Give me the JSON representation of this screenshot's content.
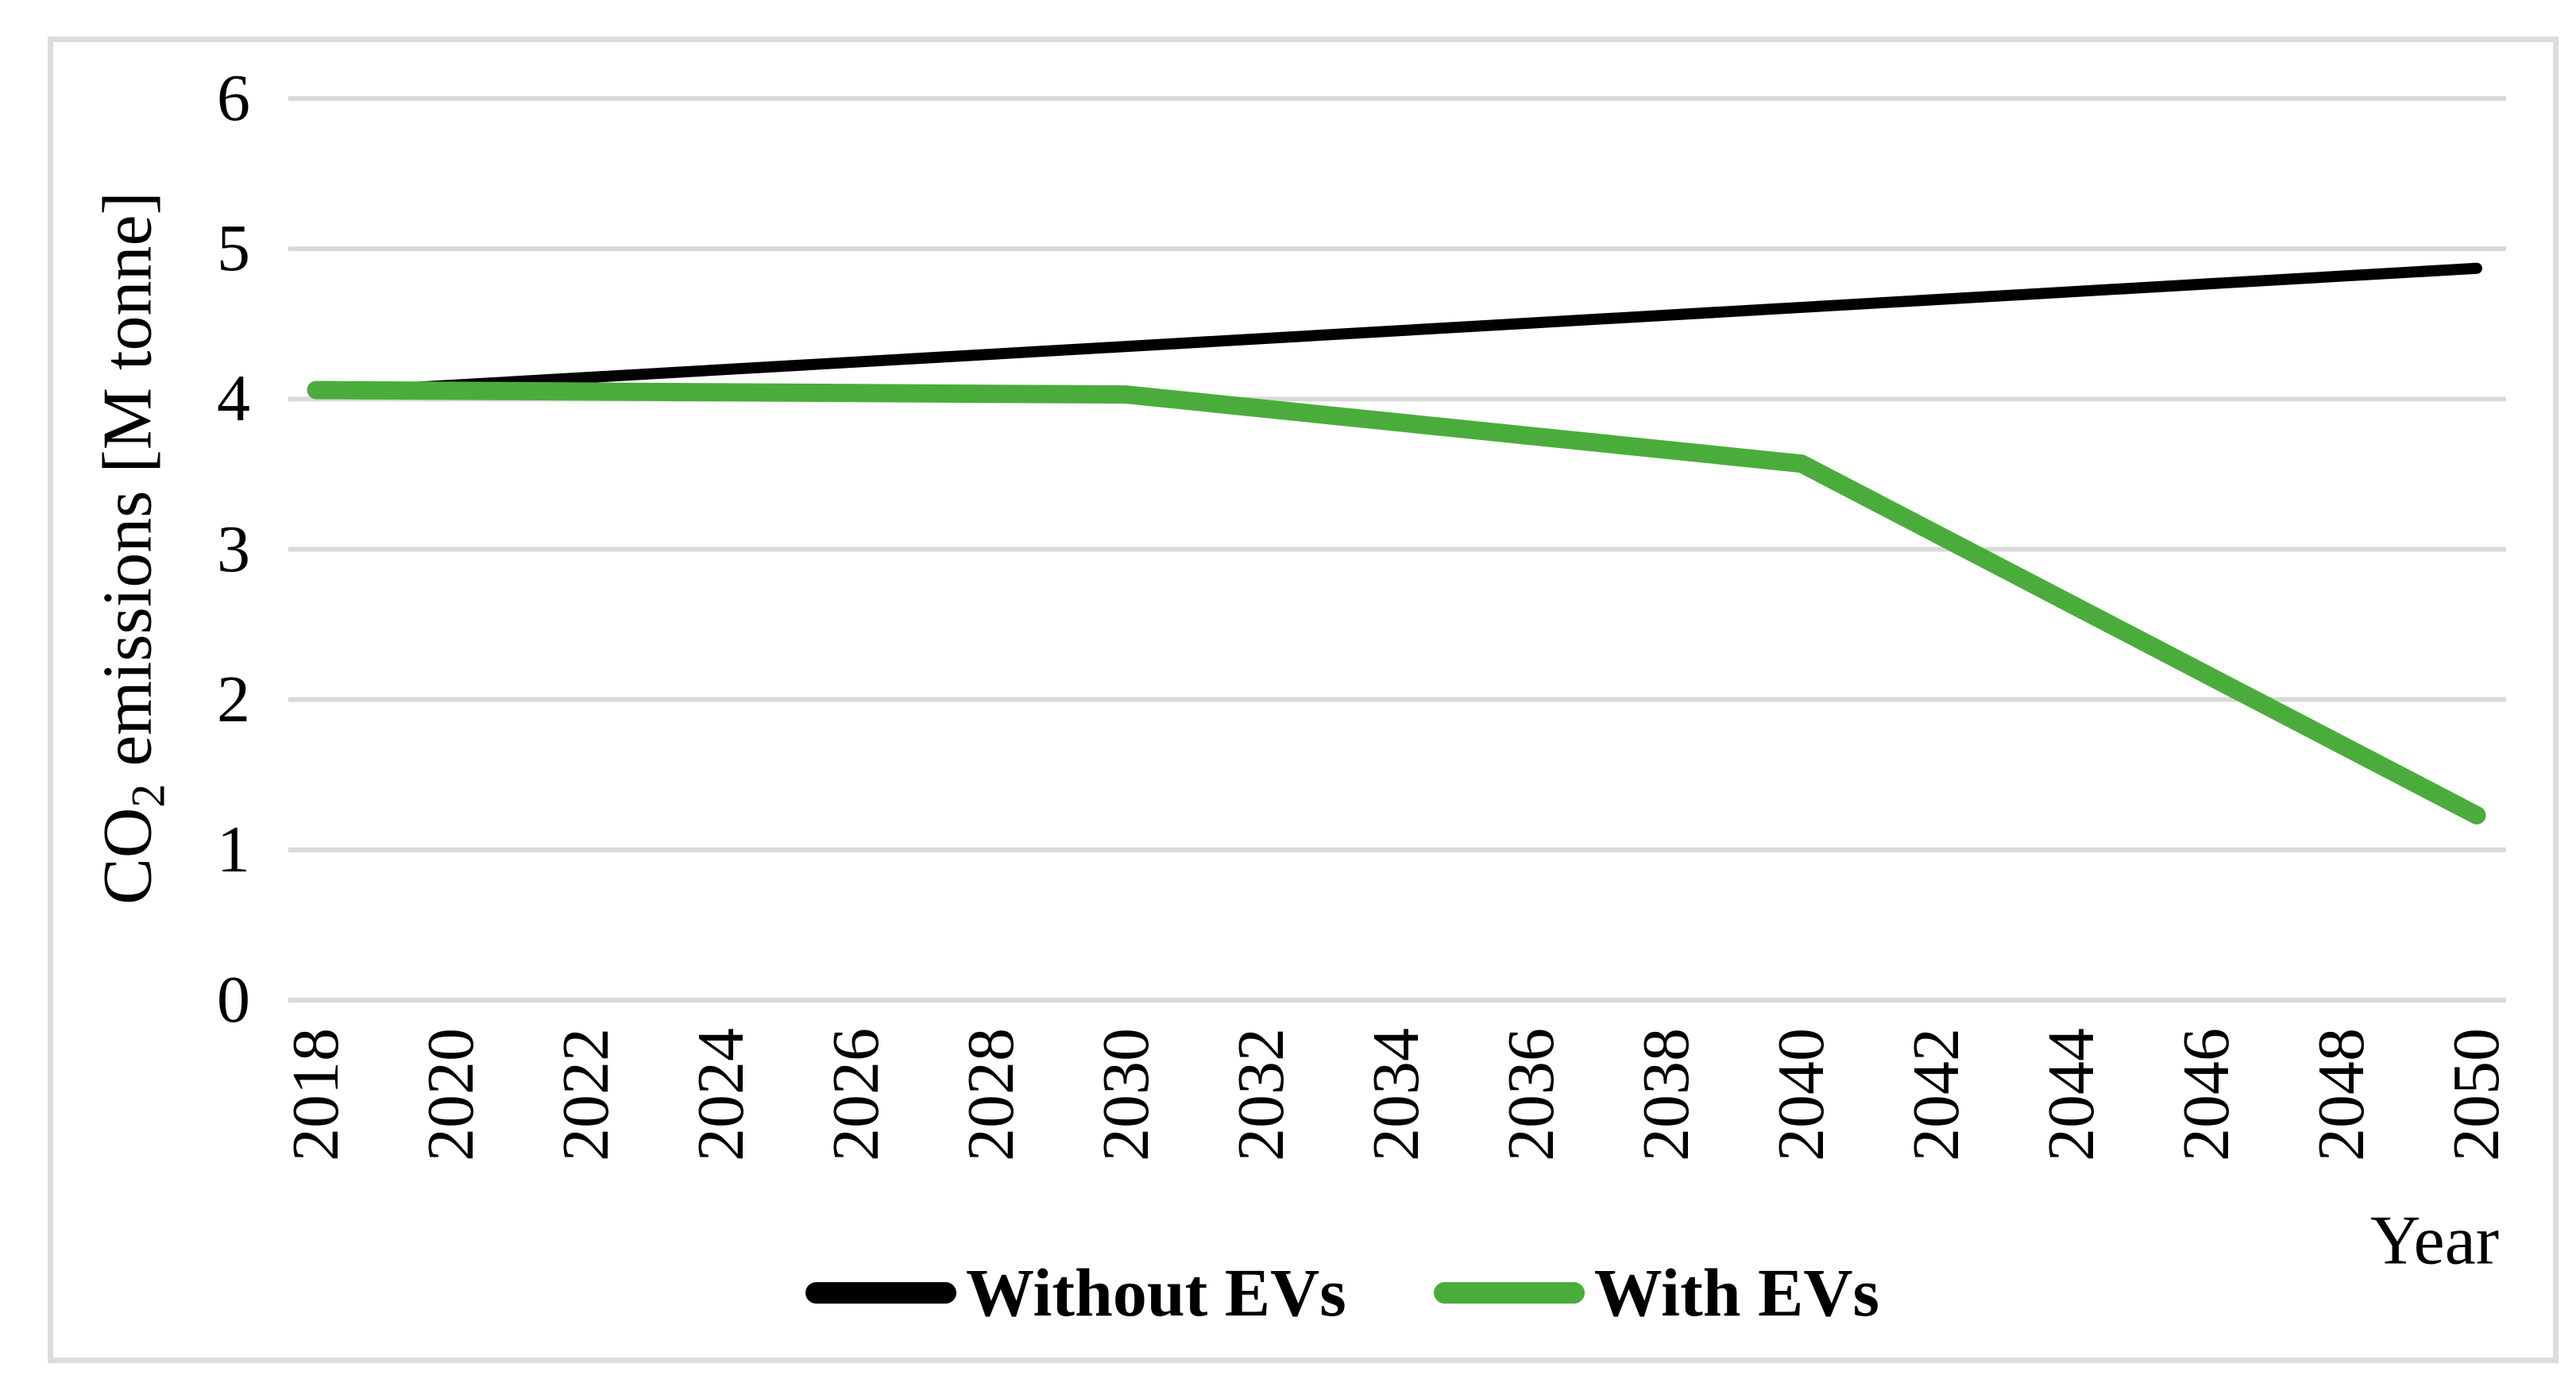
{
  "chart_data": {
    "type": "line",
    "title": "",
    "xlabel": "Year",
    "ylabel": "CO2 emissions [M tonne]",
    "ylabel_parts": {
      "prefix": "CO",
      "subscript": "2",
      "suffix": " emissions [M tonne]"
    },
    "xlim": [
      2018,
      2050
    ],
    "ylim": [
      0,
      6
    ],
    "yticks": [
      0,
      1,
      2,
      3,
      4,
      5,
      6
    ],
    "xticks": [
      2018,
      2020,
      2022,
      2024,
      2026,
      2028,
      2030,
      2032,
      2034,
      2036,
      2038,
      2040,
      2042,
      2044,
      2046,
      2048,
      2050
    ],
    "grid": "horizontal-only",
    "gridline_color": "#d9d9d9",
    "frame_color": "#dcdcdc",
    "legend_position": "bottom-center",
    "series": [
      {
        "name": "Without EVs",
        "color": "#000000",
        "x": [
          2018,
          2030,
          2040,
          2050
        ],
        "values": [
          4.04,
          4.35,
          4.61,
          4.87
        ]
      },
      {
        "name": "With EVs",
        "color": "#4aad3b",
        "x": [
          2018,
          2030,
          2040,
          2050
        ],
        "values": [
          4.06,
          4.03,
          3.57,
          1.23
        ]
      }
    ]
  }
}
